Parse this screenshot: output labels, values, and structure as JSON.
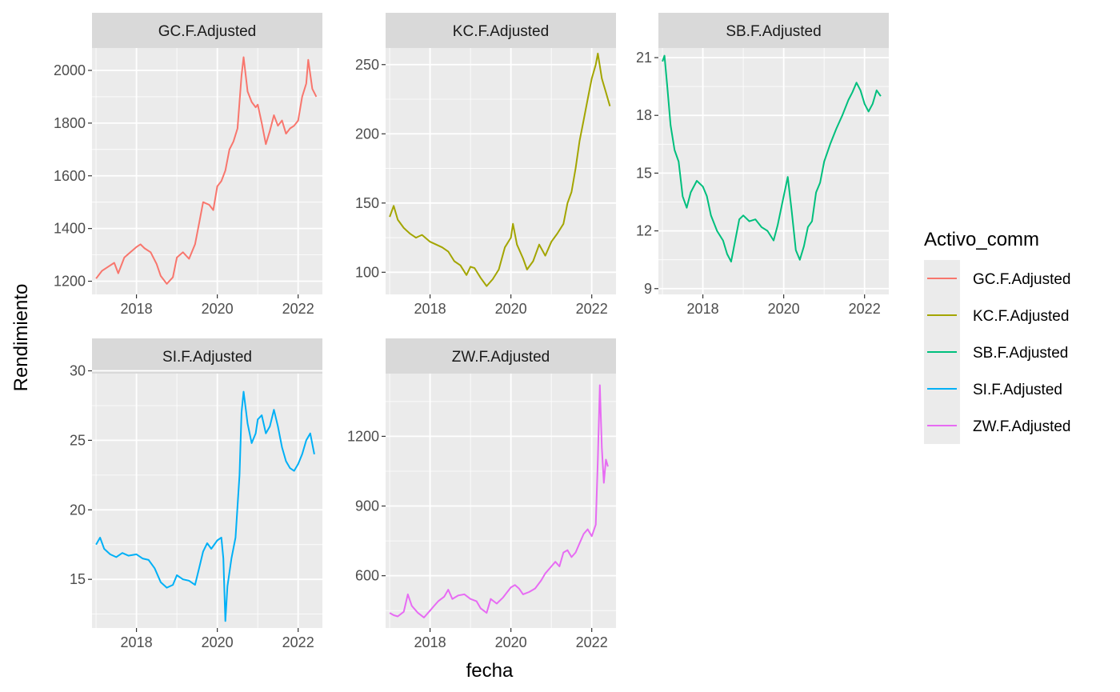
{
  "chart_data": {
    "type": "line",
    "xlabel": "fecha",
    "ylabel": "Rendimiento",
    "legend": {
      "title": "Activo_comm",
      "placement": "right",
      "entries": [
        {
          "name": "GC.F.Adjusted",
          "color": "#F8766D"
        },
        {
          "name": "KC.F.Adjusted",
          "color": "#A3A500"
        },
        {
          "name": "SB.F.Adjusted",
          "color": "#00BF7D"
        },
        {
          "name": "SI.F.Adjusted",
          "color": "#00B0F6"
        },
        {
          "name": "ZW.F.Adjusted",
          "color": "#E76BF3"
        }
      ]
    },
    "grid": true,
    "x_ticks": [
      "2018",
      "2020",
      "2022"
    ],
    "panels": [
      {
        "name": "GC.F.Adjusted",
        "color": "#F8766D",
        "xlim": [
          2016.9,
          2022.6
        ],
        "ylim": [
          1150,
          2085
        ],
        "y_ticks": [
          1200,
          1400,
          1600,
          1800,
          2000
        ],
        "points": [
          [
            2017.0,
            1210
          ],
          [
            2017.15,
            1240
          ],
          [
            2017.3,
            1255
          ],
          [
            2017.45,
            1270
          ],
          [
            2017.55,
            1230
          ],
          [
            2017.7,
            1290
          ],
          [
            2017.85,
            1310
          ],
          [
            2018.0,
            1330
          ],
          [
            2018.1,
            1340
          ],
          [
            2018.2,
            1325
          ],
          [
            2018.35,
            1310
          ],
          [
            2018.5,
            1265
          ],
          [
            2018.6,
            1220
          ],
          [
            2018.75,
            1190
          ],
          [
            2018.9,
            1215
          ],
          [
            2019.0,
            1290
          ],
          [
            2019.15,
            1310
          ],
          [
            2019.3,
            1285
          ],
          [
            2019.45,
            1340
          ],
          [
            2019.55,
            1420
          ],
          [
            2019.65,
            1500
          ],
          [
            2019.8,
            1490
          ],
          [
            2019.9,
            1470
          ],
          [
            2020.0,
            1560
          ],
          [
            2020.1,
            1580
          ],
          [
            2020.2,
            1620
          ],
          [
            2020.3,
            1700
          ],
          [
            2020.4,
            1730
          ],
          [
            2020.5,
            1780
          ],
          [
            2020.6,
            1980
          ],
          [
            2020.65,
            2050
          ],
          [
            2020.75,
            1920
          ],
          [
            2020.85,
            1880
          ],
          [
            2020.95,
            1860
          ],
          [
            2021.0,
            1870
          ],
          [
            2021.1,
            1800
          ],
          [
            2021.2,
            1720
          ],
          [
            2021.3,
            1770
          ],
          [
            2021.4,
            1830
          ],
          [
            2021.5,
            1790
          ],
          [
            2021.6,
            1810
          ],
          [
            2021.7,
            1760
          ],
          [
            2021.8,
            1780
          ],
          [
            2021.9,
            1790
          ],
          [
            2022.0,
            1810
          ],
          [
            2022.1,
            1900
          ],
          [
            2022.2,
            1950
          ],
          [
            2022.25,
            2040
          ],
          [
            2022.35,
            1930
          ],
          [
            2022.45,
            1900
          ]
        ]
      },
      {
        "name": "KC.F.Adjusted",
        "color": "#A3A500",
        "xlim": [
          2016.9,
          2022.6
        ],
        "ylim": [
          84,
          262
        ],
        "y_ticks": [
          100,
          150,
          200,
          250
        ],
        "points": [
          [
            2017.0,
            140
          ],
          [
            2017.1,
            148
          ],
          [
            2017.2,
            138
          ],
          [
            2017.35,
            132
          ],
          [
            2017.5,
            128
          ],
          [
            2017.65,
            125
          ],
          [
            2017.8,
            127
          ],
          [
            2018.0,
            122
          ],
          [
            2018.15,
            120
          ],
          [
            2018.3,
            118
          ],
          [
            2018.45,
            115
          ],
          [
            2018.6,
            108
          ],
          [
            2018.75,
            105
          ],
          [
            2018.9,
            98
          ],
          [
            2019.0,
            104
          ],
          [
            2019.1,
            103
          ],
          [
            2019.25,
            96
          ],
          [
            2019.4,
            90
          ],
          [
            2019.55,
            95
          ],
          [
            2019.7,
            102
          ],
          [
            2019.85,
            118
          ],
          [
            2020.0,
            125
          ],
          [
            2020.05,
            135
          ],
          [
            2020.15,
            120
          ],
          [
            2020.3,
            110
          ],
          [
            2020.4,
            102
          ],
          [
            2020.55,
            108
          ],
          [
            2020.7,
            120
          ],
          [
            2020.85,
            112
          ],
          [
            2021.0,
            122
          ],
          [
            2021.15,
            128
          ],
          [
            2021.3,
            135
          ],
          [
            2021.4,
            150
          ],
          [
            2021.5,
            158
          ],
          [
            2021.6,
            175
          ],
          [
            2021.7,
            195
          ],
          [
            2021.8,
            210
          ],
          [
            2021.9,
            225
          ],
          [
            2022.0,
            240
          ],
          [
            2022.1,
            250
          ],
          [
            2022.15,
            258
          ],
          [
            2022.25,
            240
          ],
          [
            2022.35,
            230
          ],
          [
            2022.45,
            220
          ]
        ]
      },
      {
        "name": "SB.F.Adjusted",
        "color": "#00BF7D",
        "xlim": [
          2016.9,
          2022.6
        ],
        "ylim": [
          8.7,
          21.5
        ],
        "y_ticks": [
          9,
          12,
          15,
          18,
          21
        ],
        "points": [
          [
            2017.0,
            20.8
          ],
          [
            2017.05,
            21.1
          ],
          [
            2017.12,
            19.5
          ],
          [
            2017.2,
            17.5
          ],
          [
            2017.3,
            16.2
          ],
          [
            2017.4,
            15.6
          ],
          [
            2017.5,
            13.8
          ],
          [
            2017.6,
            13.2
          ],
          [
            2017.7,
            14.0
          ],
          [
            2017.85,
            14.6
          ],
          [
            2018.0,
            14.3
          ],
          [
            2018.1,
            13.8
          ],
          [
            2018.2,
            12.8
          ],
          [
            2018.35,
            12.0
          ],
          [
            2018.5,
            11.5
          ],
          [
            2018.6,
            10.8
          ],
          [
            2018.7,
            10.4
          ],
          [
            2018.8,
            11.5
          ],
          [
            2018.9,
            12.6
          ],
          [
            2019.0,
            12.8
          ],
          [
            2019.15,
            12.5
          ],
          [
            2019.3,
            12.6
          ],
          [
            2019.45,
            12.2
          ],
          [
            2019.6,
            12.0
          ],
          [
            2019.75,
            11.5
          ],
          [
            2019.85,
            12.3
          ],
          [
            2020.0,
            13.8
          ],
          [
            2020.1,
            14.8
          ],
          [
            2020.2,
            13.0
          ],
          [
            2020.3,
            11.0
          ],
          [
            2020.4,
            10.5
          ],
          [
            2020.5,
            11.2
          ],
          [
            2020.6,
            12.2
          ],
          [
            2020.7,
            12.5
          ],
          [
            2020.8,
            14.0
          ],
          [
            2020.9,
            14.5
          ],
          [
            2021.0,
            15.6
          ],
          [
            2021.15,
            16.5
          ],
          [
            2021.3,
            17.3
          ],
          [
            2021.45,
            18.0
          ],
          [
            2021.6,
            18.8
          ],
          [
            2021.7,
            19.2
          ],
          [
            2021.8,
            19.7
          ],
          [
            2021.9,
            19.3
          ],
          [
            2022.0,
            18.6
          ],
          [
            2022.1,
            18.2
          ],
          [
            2022.2,
            18.6
          ],
          [
            2022.3,
            19.3
          ],
          [
            2022.4,
            19.0
          ]
        ]
      },
      {
        "name": "SI.F.Adjusted",
        "color": "#00B0F6",
        "xlim": [
          2016.9,
          2022.6
        ],
        "ylim": [
          11.5,
          29.8
        ],
        "y_ticks": [
          15,
          20,
          25,
          30
        ],
        "points": [
          [
            2017.0,
            17.5
          ],
          [
            2017.1,
            18.0
          ],
          [
            2017.2,
            17.2
          ],
          [
            2017.35,
            16.8
          ],
          [
            2017.5,
            16.6
          ],
          [
            2017.65,
            16.9
          ],
          [
            2017.8,
            16.7
          ],
          [
            2018.0,
            16.8
          ],
          [
            2018.15,
            16.5
          ],
          [
            2018.3,
            16.4
          ],
          [
            2018.45,
            15.8
          ],
          [
            2018.6,
            14.8
          ],
          [
            2018.75,
            14.4
          ],
          [
            2018.9,
            14.6
          ],
          [
            2019.0,
            15.3
          ],
          [
            2019.15,
            15.0
          ],
          [
            2019.3,
            14.9
          ],
          [
            2019.45,
            14.6
          ],
          [
            2019.55,
            15.8
          ],
          [
            2019.65,
            17.0
          ],
          [
            2019.75,
            17.6
          ],
          [
            2019.85,
            17.2
          ],
          [
            2020.0,
            17.8
          ],
          [
            2020.1,
            18.0
          ],
          [
            2020.15,
            16.5
          ],
          [
            2020.2,
            12.0
          ],
          [
            2020.25,
            14.5
          ],
          [
            2020.35,
            16.5
          ],
          [
            2020.45,
            18.0
          ],
          [
            2020.55,
            22.5
          ],
          [
            2020.6,
            27.0
          ],
          [
            2020.65,
            28.5
          ],
          [
            2020.75,
            26.2
          ],
          [
            2020.85,
            24.8
          ],
          [
            2020.95,
            25.5
          ],
          [
            2021.0,
            26.5
          ],
          [
            2021.1,
            26.8
          ],
          [
            2021.2,
            25.5
          ],
          [
            2021.3,
            26.0
          ],
          [
            2021.4,
            27.2
          ],
          [
            2021.5,
            26.0
          ],
          [
            2021.6,
            24.5
          ],
          [
            2021.7,
            23.5
          ],
          [
            2021.8,
            23.0
          ],
          [
            2021.9,
            22.8
          ],
          [
            2022.0,
            23.3
          ],
          [
            2022.1,
            24.0
          ],
          [
            2022.2,
            25.0
          ],
          [
            2022.3,
            25.5
          ],
          [
            2022.4,
            24.0
          ]
        ]
      },
      {
        "name": "ZW.F.Adjusted",
        "color": "#E76BF3",
        "xlim": [
          2016.9,
          2022.6
        ],
        "ylim": [
          375,
          1470
        ],
        "y_ticks": [
          600,
          900,
          1200
        ],
        "points": [
          [
            2017.0,
            440
          ],
          [
            2017.1,
            430
          ],
          [
            2017.2,
            425
          ],
          [
            2017.35,
            445
          ],
          [
            2017.45,
            520
          ],
          [
            2017.55,
            470
          ],
          [
            2017.7,
            440
          ],
          [
            2017.85,
            420
          ],
          [
            2018.0,
            450
          ],
          [
            2018.1,
            470
          ],
          [
            2018.2,
            490
          ],
          [
            2018.35,
            510
          ],
          [
            2018.45,
            540
          ],
          [
            2018.55,
            500
          ],
          [
            2018.7,
            515
          ],
          [
            2018.85,
            520
          ],
          [
            2019.0,
            500
          ],
          [
            2019.15,
            490
          ],
          [
            2019.25,
            460
          ],
          [
            2019.4,
            440
          ],
          [
            2019.5,
            500
          ],
          [
            2019.65,
            480
          ],
          [
            2019.8,
            505
          ],
          [
            2020.0,
            550
          ],
          [
            2020.1,
            560
          ],
          [
            2020.2,
            545
          ],
          [
            2020.3,
            520
          ],
          [
            2020.45,
            530
          ],
          [
            2020.6,
            545
          ],
          [
            2020.75,
            580
          ],
          [
            2020.85,
            610
          ],
          [
            2021.0,
            640
          ],
          [
            2021.1,
            660
          ],
          [
            2021.2,
            640
          ],
          [
            2021.3,
            700
          ],
          [
            2021.4,
            710
          ],
          [
            2021.5,
            680
          ],
          [
            2021.6,
            700
          ],
          [
            2021.7,
            740
          ],
          [
            2021.8,
            780
          ],
          [
            2021.9,
            800
          ],
          [
            2022.0,
            770
          ],
          [
            2022.1,
            820
          ],
          [
            2022.15,
            1100
          ],
          [
            2022.2,
            1420
          ],
          [
            2022.25,
            1150
          ],
          [
            2022.3,
            1000
          ],
          [
            2022.35,
            1100
          ],
          [
            2022.4,
            1070
          ]
        ]
      }
    ]
  }
}
